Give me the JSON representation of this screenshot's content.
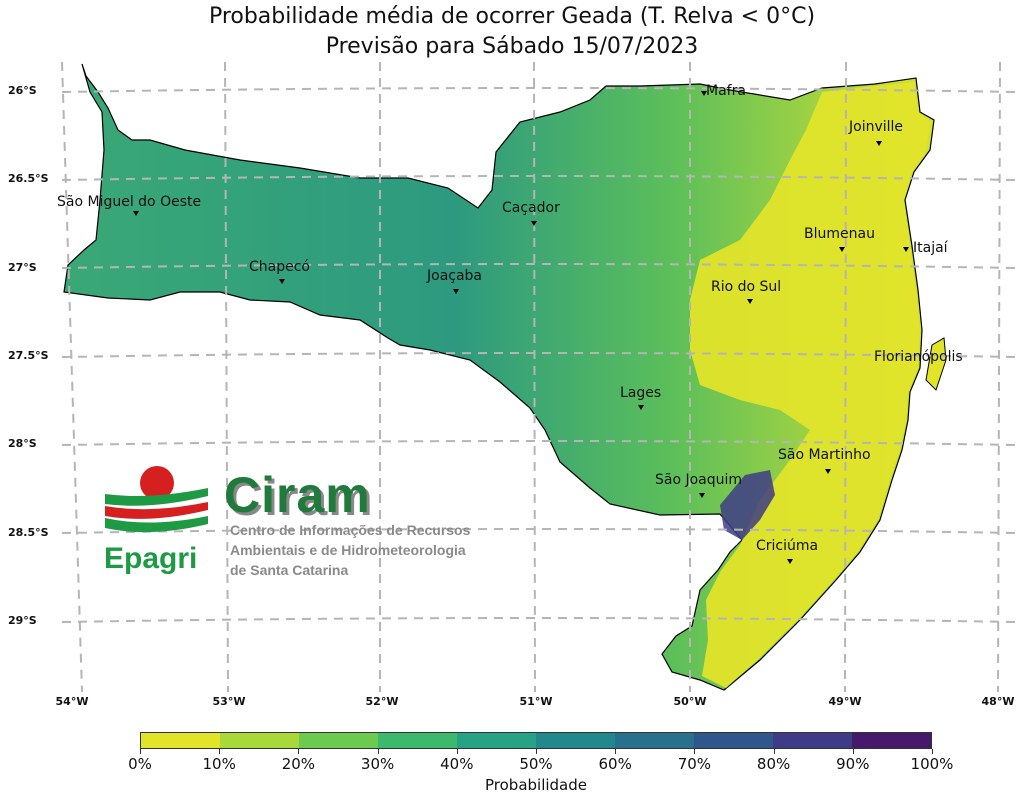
{
  "title": {
    "line1": "Probabilidade média de ocorrer Geada (T. Relva < 0°C)",
    "line2": "Previsão para Sábado 15/07/2023"
  },
  "latitude_labels": [
    "26°S",
    "26.5°S",
    "27°S",
    "27.5°S",
    "28°S",
    "28.5°S",
    "29°S"
  ],
  "longitude_labels": [
    "54°W",
    "53°W",
    "52°W",
    "51°W",
    "50°W",
    "49°W",
    "48°W"
  ],
  "cities": [
    {
      "name": "Mafra"
    },
    {
      "name": "Joinville"
    },
    {
      "name": "São Miguel do Oeste"
    },
    {
      "name": "Caçador"
    },
    {
      "name": "Blumenau"
    },
    {
      "name": "Itajaí"
    },
    {
      "name": "Chapecó"
    },
    {
      "name": "Joaçaba"
    },
    {
      "name": "Rio do Sul"
    },
    {
      "name": "Florianópolis"
    },
    {
      "name": "Lages"
    },
    {
      "name": "São Martinho"
    },
    {
      "name": "São Joaquim"
    },
    {
      "name": "Criciúma"
    }
  ],
  "colorbar": {
    "label": "Probabilidade",
    "ticks": [
      "0%",
      "10%",
      "20%",
      "30%",
      "40%",
      "50%",
      "60%",
      "70%",
      "80%",
      "90%",
      "100%"
    ],
    "colors": [
      "#e2e42a",
      "#a8d83a",
      "#6cca4e",
      "#3cb96d",
      "#27a285",
      "#21898c",
      "#28708c",
      "#30578b",
      "#3e3c86",
      "#451a6d"
    ]
  },
  "logo": {
    "name": "Ciram",
    "subtitle_lines": [
      "Centro de Informações de Recursos",
      "Ambientais e de Hidrometeorologia",
      "de Santa Catarina"
    ],
    "org": "Epagri"
  }
}
